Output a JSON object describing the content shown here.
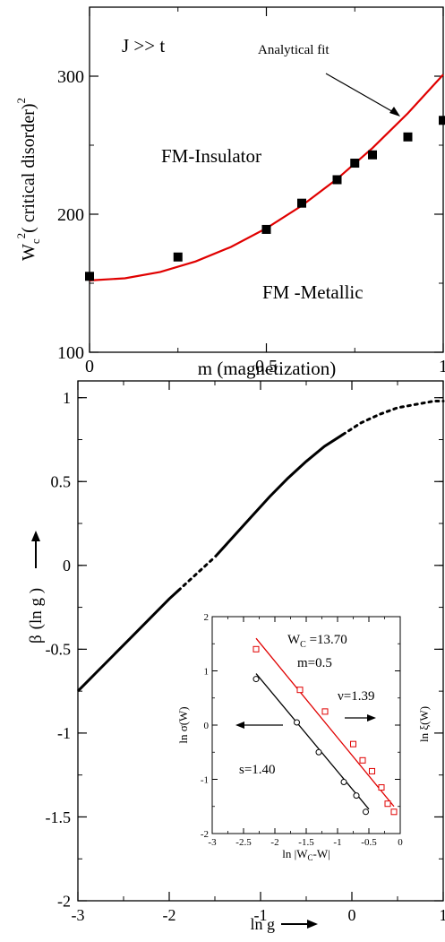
{
  "chart_data": [
    {
      "type": "scatter",
      "xlabel": "m (magnetization)",
      "ylabel_main": "W",
      "ylabel_sub": "c",
      "ylabel_sup1": "2",
      "ylabel_mid": "( critical disorder)",
      "ylabel_sup2": "2",
      "xlim": [
        0,
        1
      ],
      "ylim": [
        100,
        350
      ],
      "xticks": [
        "0",
        "0.5",
        "1"
      ],
      "yticks": [
        "100",
        "200",
        "300"
      ],
      "annotations": {
        "regime": "J >> t",
        "fit_label": "Analytical fit",
        "upper_region": "FM-Insulator",
        "lower_region": "FM -Metallic"
      },
      "colors": {
        "points": "#000000",
        "fit": "#e00000"
      },
      "series": [
        {
          "kind": "points",
          "x": [
            0,
            0.25,
            0.5,
            0.6,
            0.7,
            0.75,
            0.8,
            0.9,
            1.0
          ],
          "y": [
            155,
            169,
            189,
            208,
            225,
            237,
            243,
            256,
            268
          ]
        },
        {
          "name": "Analytical fit",
          "kind": "curve",
          "x": [
            0,
            0.1,
            0.2,
            0.3,
            0.4,
            0.5,
            0.6,
            0.7,
            0.8,
            0.9,
            1.0
          ],
          "y": [
            152,
            153.6,
            158.2,
            165.8,
            176.3,
            189.8,
            206.2,
            225.6,
            247.9,
            273.1,
            301.2
          ]
        }
      ]
    },
    {
      "type": "line",
      "xlabel": "ln g",
      "ylabel_beta": "β",
      "ylabel_rest": "(ln g )",
      "xlim": [
        -3,
        1
      ],
      "ylim": [
        -2,
        1.1
      ],
      "xticks": [
        "-3",
        "-2",
        "-1",
        "0",
        "1"
      ],
      "yticks": [
        "-2",
        "-1.5",
        "-1",
        "-0.5",
        "0",
        "0.5",
        "1"
      ],
      "series": [
        {
          "kind": "solid",
          "x": [
            -3.0,
            -2.8,
            -2.6,
            -2.4,
            -2.2,
            -2.0,
            -1.9
          ],
          "y": [
            -0.75,
            -0.64,
            -0.53,
            -0.42,
            -0.31,
            -0.2,
            -0.15
          ]
        },
        {
          "kind": "dotted",
          "x": [
            -1.9,
            -1.8,
            -1.7,
            -1.6,
            -1.5
          ],
          "y": [
            -0.15,
            -0.1,
            -0.05,
            0.0,
            0.05
          ]
        },
        {
          "kind": "solid",
          "x": [
            -1.5,
            -1.3,
            -1.1,
            -0.9,
            -0.7,
            -0.5,
            -0.3,
            -0.1
          ],
          "y": [
            0.05,
            0.17,
            0.29,
            0.41,
            0.52,
            0.62,
            0.71,
            0.78
          ]
        },
        {
          "kind": "dotted",
          "x": [
            -0.1,
            0.1,
            0.3,
            0.5,
            0.7,
            0.9,
            1.0
          ],
          "y": [
            0.78,
            0.85,
            0.9,
            0.94,
            0.96,
            0.98,
            0.98
          ]
        }
      ]
    },
    {
      "type": "scatter",
      "inset": true,
      "xlabel_pre": "ln |W",
      "xlabel_sub": "C",
      "xlabel_post": "-W|",
      "ylabel_left": "ln σ(W)",
      "ylabel_right": "ln ξ(W)",
      "xlim": [
        -3,
        0
      ],
      "ylim": [
        -2,
        2
      ],
      "xticks": [
        "-3",
        "-2.5",
        "-2",
        "-1.5",
        "-1",
        "-0.5",
        "0"
      ],
      "yticks": [
        "-2",
        "-1",
        "0",
        "1",
        "2"
      ],
      "annotations": {
        "wc_pre": "W",
        "wc_sub": "C",
        "wc_post": " =13.70",
        "m_value": "m=0.5",
        "nu_label": "ν=1.39",
        "s_label": "s=1.40"
      },
      "colors": {
        "sigma": "#000000",
        "xi": "#e00000"
      },
      "series": [
        {
          "name": "ln ξ(W)",
          "kind": "squares",
          "x": [
            -2.3,
            -1.6,
            -1.2,
            -0.75,
            -0.6,
            -0.45,
            -0.3,
            -0.2,
            -0.1
          ],
          "y": [
            1.4,
            0.65,
            0.25,
            -0.35,
            -0.65,
            -0.85,
            -1.15,
            -1.45,
            -1.6
          ]
        },
        {
          "kind": "fit-xi",
          "x": [
            -2.3,
            -0.1
          ],
          "y": [
            1.6,
            -1.5
          ]
        },
        {
          "name": "ln σ(W)",
          "kind": "circles",
          "x": [
            -2.3,
            -1.65,
            -1.3,
            -0.9,
            -0.7,
            -0.55
          ],
          "y": [
            0.85,
            0.05,
            -0.5,
            -1.05,
            -1.3,
            -1.6
          ]
        },
        {
          "kind": "fit-sigma",
          "x": [
            -2.3,
            -0.5
          ],
          "y": [
            0.95,
            -1.55
          ]
        }
      ]
    }
  ]
}
